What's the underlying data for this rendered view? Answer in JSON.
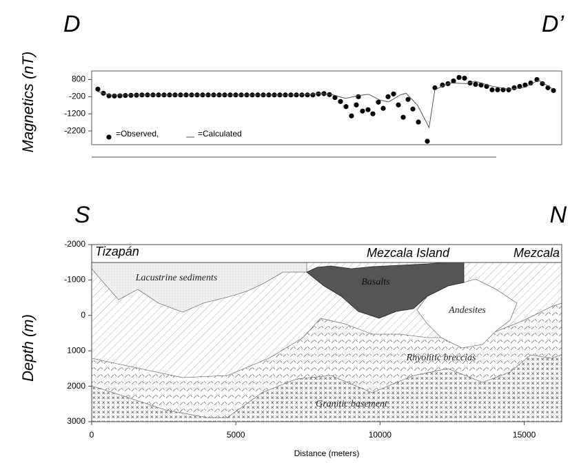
{
  "chart_data": [
    {
      "type": "scatter",
      "left_label": "D",
      "right_label": "D’",
      "ylabel": "Magnetics (nT)",
      "xlim": [
        0,
        16300
      ],
      "ylim": [
        -3000,
        1300
      ],
      "yticks": [
        800,
        -200,
        -1200,
        -2200
      ],
      "series": [
        {
          "name": "=Observed,",
          "style": "dot",
          "color": "#000000",
          "x": [
            215,
            406,
            598,
            789,
            980,
            1171,
            1363,
            1554,
            1745,
            1936,
            2127,
            2318,
            2510,
            2701,
            2892,
            3083,
            3274,
            3466,
            3657,
            3848,
            4039,
            4230,
            4422,
            4613,
            4804,
            4995,
            5186,
            5378,
            5569,
            5760,
            5951,
            6142,
            6334,
            6525,
            6716,
            6907,
            7098,
            7290,
            7481,
            7672,
            7863,
            8054,
            8246,
            8437,
            8628,
            8819,
            9010,
            9178,
            9249,
            9393,
            9584,
            9751,
            9942,
            10110,
            10277,
            10468,
            10636,
            10803,
            10970,
            11137,
            11329,
            11639,
            11902,
            12165,
            12356,
            12548,
            12739,
            12930,
            13121,
            13312,
            13504,
            13695,
            13886,
            14077,
            14268,
            14460,
            14651,
            14842,
            15033,
            15224,
            15439,
            15630,
            15822,
            16013
          ],
          "values": [
            240,
            0,
            -150,
            -160,
            -150,
            -130,
            -120,
            -110,
            -100,
            -100,
            -100,
            -100,
            -100,
            -100,
            -100,
            -100,
            -100,
            -100,
            -100,
            -100,
            -100,
            -100,
            -100,
            -100,
            -100,
            -100,
            -100,
            -100,
            -100,
            -100,
            -100,
            -100,
            -100,
            -100,
            -100,
            -100,
            -100,
            -100,
            -100,
            -100,
            -40,
            -20,
            -80,
            -250,
            -480,
            -780,
            -1320,
            -680,
            -200,
            -1040,
            -960,
            -1200,
            -520,
            -880,
            -200,
            -40,
            -680,
            -1400,
            -360,
            -920,
            -1680,
            -2800,
            320,
            480,
            560,
            720,
            920,
            880,
            600,
            520,
            480,
            400,
            200,
            200,
            200,
            200,
            320,
            400,
            480,
            600,
            800,
            560,
            320,
            160
          ]
        },
        {
          "name": "=Calculated",
          "style": "line",
          "color": "#555555",
          "x": [
            215,
            600,
            2000,
            7000,
            7500,
            7900,
            8300,
            8800,
            9300,
            9600,
            10000,
            10300,
            10700,
            10900,
            11300,
            11700,
            11900,
            12400,
            13000,
            13300,
            13900,
            14500,
            15000,
            15500,
            16000
          ],
          "values": [
            100,
            -100,
            -100,
            -100,
            -60,
            -20,
            -60,
            -300,
            -120,
            -60,
            -400,
            -500,
            -100,
            0,
            -700,
            -2000,
            200,
            600,
            560,
            700,
            400,
            240,
            340,
            760,
            240
          ]
        }
      ]
    },
    {
      "type": "cross-section",
      "left_label": "S",
      "right_label": "N",
      "ylabel": "Depth (m)",
      "xlabel": "Distance (meters)",
      "xlim": [
        0,
        16300
      ],
      "ylim": [
        -2000,
        3000
      ],
      "y_inverted": true,
      "xticks": [
        0,
        5000,
        10000,
        15000
      ],
      "yticks": [
        -2000,
        -1000,
        0,
        1000,
        2000,
        3000
      ],
      "places": [
        "Tizapán",
        "Mezcala Island",
        "Mezcala"
      ],
      "units": [
        "Lacustrine sediments",
        "Basalts",
        "Andesites",
        "Rhyolitic breccias",
        "Granitic basement"
      ]
    }
  ]
}
